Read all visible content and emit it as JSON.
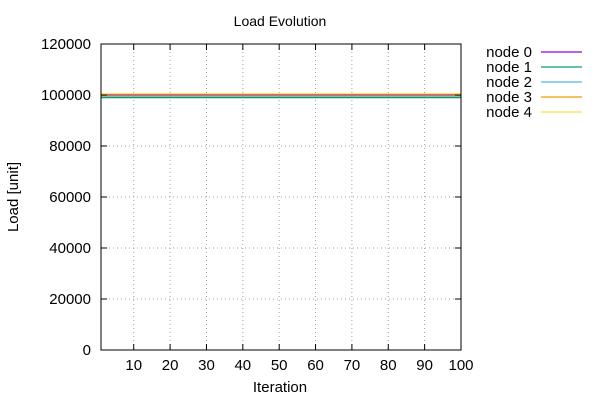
{
  "chart_data": {
    "type": "line",
    "title": "Load Evolution",
    "xlabel": "Iteration",
    "ylabel": "Load [unit]",
    "xlim": [
      1,
      100
    ],
    "ylim": [
      0,
      120000
    ],
    "x_ticks": [
      10,
      20,
      30,
      40,
      50,
      60,
      70,
      80,
      90,
      100
    ],
    "y_ticks": [
      0,
      20000,
      40000,
      60000,
      80000,
      100000,
      120000
    ],
    "grid": true,
    "legend_position": "outside-right",
    "x": [
      1,
      100
    ],
    "series": [
      {
        "name": "node 0",
        "color": "#9400d3",
        "values": [
          100000,
          100000
        ]
      },
      {
        "name": "node 1",
        "color": "#009e73",
        "values": [
          99000,
          99000
        ]
      },
      {
        "name": "node 2",
        "color": "#56b4e9",
        "values": [
          99500,
          99500
        ]
      },
      {
        "name": "node 3",
        "color": "#e69f00",
        "values": [
          99700,
          99700
        ]
      },
      {
        "name": "node 4",
        "color": "#f0e442",
        "values": [
          100500,
          100500
        ]
      }
    ]
  }
}
